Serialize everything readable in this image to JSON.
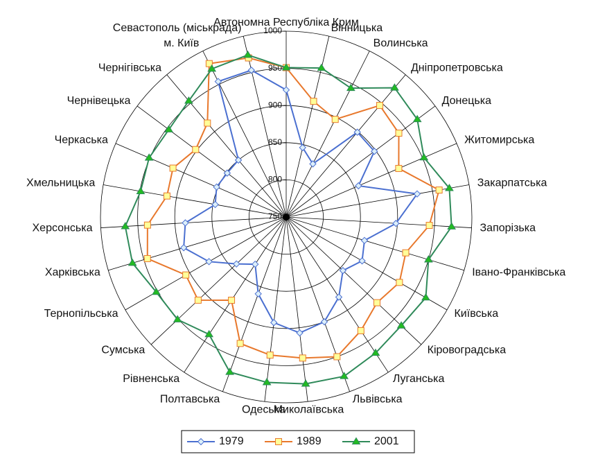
{
  "chart_data": {
    "type": "radar",
    "categories": [
      "Автономна Республіка Крим",
      "Вінницька",
      "Волинська",
      "Дніпропетровська",
      "Донецька",
      "Житомирська",
      "Закарпатська",
      "Запорізька",
      "Івано-Франківська",
      "Київська",
      "Кіровоградська",
      "Луганська",
      "Львівська",
      "Миколаївська",
      "Одеська",
      "Полтавська",
      "Рівненська",
      "Сумська",
      "Тернопільська",
      "Харківська",
      "Херсонська",
      "Хмельницька",
      "Черкаська",
      "Чернівецька",
      "Чернігівська",
      "м. Київ",
      "Севастополь (міськрада)"
    ],
    "series": [
      {
        "name": "1979",
        "color": "#4a6fd0",
        "marker": "diamond",
        "marker_fill": "#dceffa",
        "values": [
          921,
          846,
          830,
          899,
          898,
          856,
          929,
          898,
          860,
          868,
          855,
          879,
          900,
          907,
          893,
          860,
          826,
          842,
          870,
          894,
          886,
          847,
          852,
          849,
          850,
          954,
          953
        ]
      },
      {
        "name": "1989",
        "color": "#e8782c",
        "marker": "square",
        "marker_fill": "#ffff99",
        "values": [
          951,
          910,
          897,
          946,
          939,
          915,
          959,
          943,
          918,
          926,
          918,
          933,
          950,
          941,
          937,
          931,
          884,
          913,
          906,
          945,
          937,
          913,
          916,
          902,
          915,
          981,
          970
        ]
      },
      {
        "name": "2001",
        "color": "#2f8a5a",
        "marker": "triangle",
        "marker_fill": "#22bb22",
        "values": [
          951,
          956,
          944,
          977,
          970,
          952,
          973,
          973,
          950,
          967,
          963,
          969,
          978,
          976,
          974,
          972,
          939,
          951,
          952,
          966,
          967,
          949,
          951,
          947,
          954,
          973,
          974
        ]
      }
    ],
    "ylim": [
      750,
      1000
    ],
    "yticks": [
      750,
      800,
      850,
      900,
      950,
      1000
    ],
    "grid": true,
    "legend": "bottom"
  }
}
